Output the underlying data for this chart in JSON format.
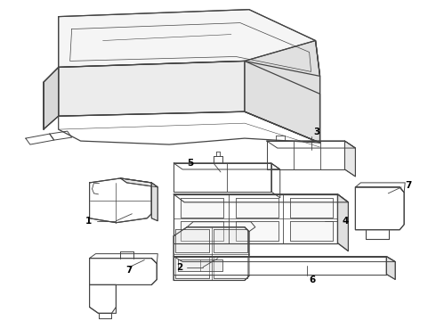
{
  "background_color": "#ffffff",
  "line_color": "#444444",
  "label_color": "#000000",
  "fig_width": 4.9,
  "fig_height": 3.6,
  "dpi": 100
}
